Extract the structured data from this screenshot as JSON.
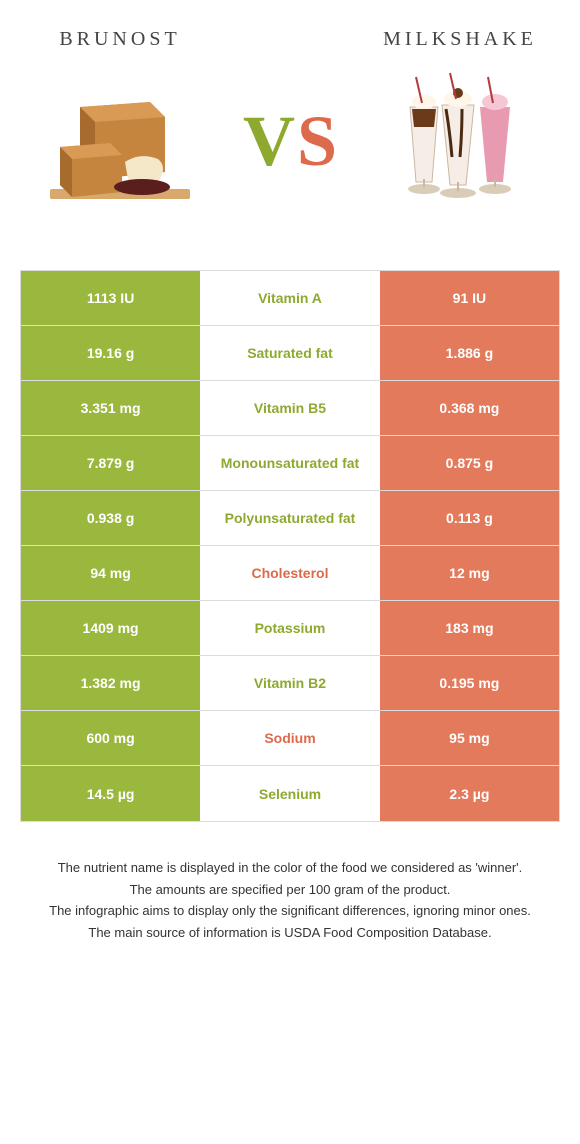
{
  "header": {
    "left_title": "Brunost",
    "right_title": "Milkshake",
    "vs_v": "V",
    "vs_s": "S"
  },
  "colors": {
    "left_bg": "#9ab73e",
    "right_bg": "#e37a5c",
    "left_text": "#8ea92f",
    "right_text": "#dd6a4a",
    "row_border": "#dcdcdc",
    "background": "#ffffff"
  },
  "table": {
    "rows": [
      {
        "left": "1113 IU",
        "mid": "Vitamin A",
        "right": "91 IU",
        "winner": "left"
      },
      {
        "left": "19.16 g",
        "mid": "Saturated fat",
        "right": "1.886 g",
        "winner": "left"
      },
      {
        "left": "3.351 mg",
        "mid": "Vitamin B5",
        "right": "0.368 mg",
        "winner": "left"
      },
      {
        "left": "7.879 g",
        "mid": "Monounsaturated fat",
        "right": "0.875 g",
        "winner": "left"
      },
      {
        "left": "0.938 g",
        "mid": "Polyunsaturated fat",
        "right": "0.113 g",
        "winner": "left"
      },
      {
        "left": "94 mg",
        "mid": "Cholesterol",
        "right": "12 mg",
        "winner": "right"
      },
      {
        "left": "1409 mg",
        "mid": "Potassium",
        "right": "183 mg",
        "winner": "left"
      },
      {
        "left": "1.382 mg",
        "mid": "Vitamin B2",
        "right": "0.195 mg",
        "winner": "left"
      },
      {
        "left": "600 mg",
        "mid": "Sodium",
        "right": "95 mg",
        "winner": "right"
      },
      {
        "left": "14.5 µg",
        "mid": "Selenium",
        "right": "2.3 µg",
        "winner": "left"
      }
    ]
  },
  "footer": {
    "line1": "The nutrient name is displayed in the color of the food we considered as 'winner'.",
    "line2": "The amounts are specified per 100 gram of the product.",
    "line3": "The infographic aims to display only the significant differences, ignoring minor ones.",
    "line4": "The main source of information is USDA Food Composition Database."
  }
}
